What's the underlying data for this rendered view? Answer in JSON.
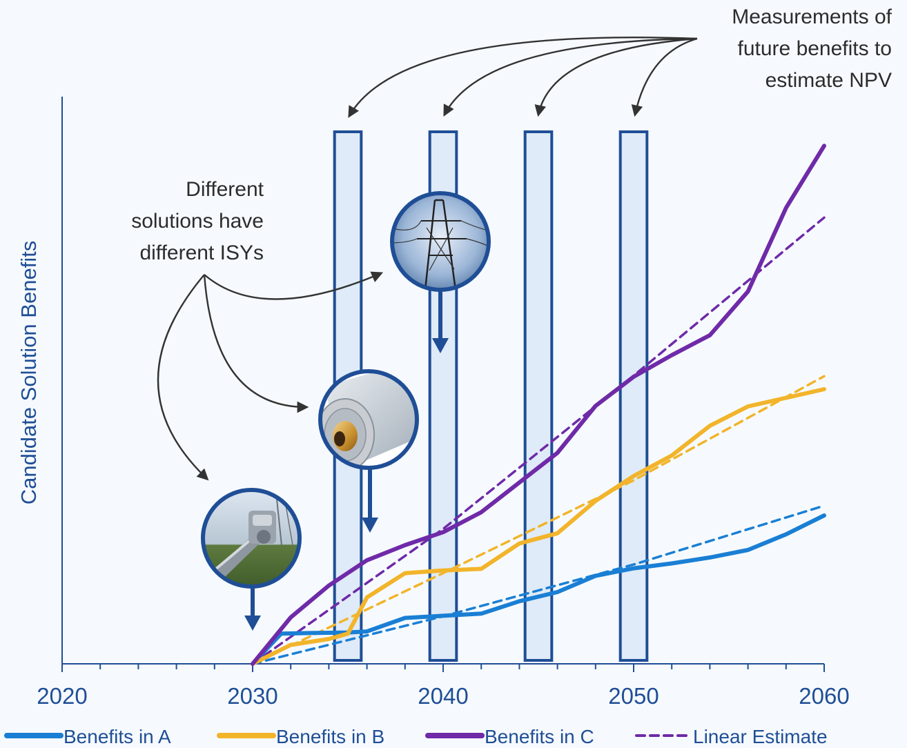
{
  "chart_data": {
    "type": "line",
    "title": "",
    "xlabel": "",
    "ylabel": "Candidate Solution Benefits",
    "xlim": [
      2020,
      2060
    ],
    "xticks": [
      "2020",
      "2030",
      "2040",
      "2050",
      "2060"
    ],
    "x_minor_step": 2,
    "ylim": [
      0,
      100
    ],
    "grid": false,
    "legend_position": "bottom",
    "series": [
      {
        "name": "Benefits in A",
        "color": "#1a7fd4",
        "style": "solid",
        "x": [
          2030,
          2031.5,
          2033,
          2035,
          2036,
          2038,
          2040,
          2042,
          2044,
          2046,
          2048,
          2050,
          2052,
          2054,
          2056,
          2058,
          2060
        ],
        "y": [
          0,
          5.6,
          5.7,
          5.8,
          6.0,
          8.5,
          8.9,
          9.3,
          11.6,
          13.3,
          16.3,
          17.7,
          18.6,
          19.7,
          21.1,
          24.0,
          27.5
        ]
      },
      {
        "name": "Linear Estimate",
        "color": "#1a7fd4",
        "style": "dashed",
        "x": [
          2030,
          2040,
          2050,
          2060
        ],
        "y": [
          0,
          8.8,
          18.4,
          29.3
        ]
      },
      {
        "name": "Benefits in B",
        "color": "#f2b42a",
        "style": "solid",
        "x": [
          2030,
          2032,
          2034,
          2035,
          2036,
          2038,
          2040,
          2042,
          2044,
          2046,
          2048,
          2050,
          2052,
          2054,
          2056,
          2058,
          2060
        ],
        "y": [
          0,
          3.5,
          4.6,
          5.6,
          12.3,
          16.8,
          17.3,
          17.6,
          22.3,
          24.2,
          30.2,
          34.8,
          38.6,
          44.1,
          47.7,
          49.3,
          50.9
        ]
      },
      {
        "name": "Linear Estimate",
        "color": "#f2b42a",
        "style": "dashed",
        "x": [
          2030,
          2040,
          2050,
          2060
        ],
        "y": [
          0,
          16.8,
          34.0,
          53.3
        ]
      },
      {
        "name": "Benefits in C",
        "color": "#6f2aa8",
        "style": "solid",
        "x": [
          2030,
          2032,
          2034,
          2036,
          2038,
          2040,
          2042,
          2044,
          2046,
          2048,
          2050,
          2052,
          2054,
          2056,
          2058,
          2060
        ],
        "y": [
          0,
          8.6,
          14.5,
          19.2,
          22.0,
          24.4,
          28.1,
          33.6,
          39.1,
          47.8,
          53.2,
          57.2,
          60.9,
          69.0,
          84.5,
          96.0
        ]
      },
      {
        "name": "Linear Estimate",
        "color": "#6f2aa8",
        "style": "dashed",
        "x": [
          2030,
          2040,
          2050,
          2060
        ],
        "y": [
          0,
          25.0,
          53.4,
          82.7
        ]
      }
    ],
    "highlight_bands": [
      {
        "year": 2035
      },
      {
        "year": 2040
      },
      {
        "year": 2045
      },
      {
        "year": 2050
      }
    ],
    "isy_markers": [
      {
        "name": "insulator-photo",
        "year": 2030
      },
      {
        "name": "cable-photo",
        "year": 2036
      },
      {
        "name": "transmission-tower-photo",
        "year": 2040
      }
    ],
    "annotations": {
      "measurements": [
        "Measurements of",
        "future benefits to",
        "estimate NPV"
      ],
      "isy": [
        "Different",
        "solutions have",
        "different ISYs"
      ]
    },
    "legend": [
      {
        "label": "Benefits in A",
        "color": "#1a7fd4",
        "style": "solid"
      },
      {
        "label": "Benefits in B",
        "color": "#f2b42a",
        "style": "solid"
      },
      {
        "label": "Benefits in C",
        "color": "#6f2aa8",
        "style": "solid"
      },
      {
        "label": "Linear Estimate",
        "color": "#6f2aa8",
        "style": "dashed"
      }
    ]
  }
}
